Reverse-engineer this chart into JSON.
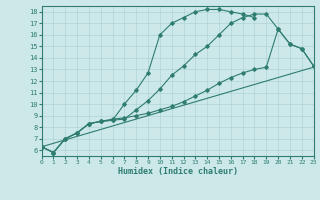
{
  "xlabel": "Humidex (Indice chaleur)",
  "xlim": [
    0,
    23
  ],
  "ylim": [
    5.5,
    18.5
  ],
  "xticks": [
    0,
    1,
    2,
    3,
    4,
    5,
    6,
    7,
    8,
    9,
    10,
    11,
    12,
    13,
    14,
    15,
    16,
    17,
    18,
    19,
    20,
    21,
    22,
    23
  ],
  "yticks": [
    6,
    7,
    8,
    9,
    10,
    11,
    12,
    13,
    14,
    15,
    16,
    17,
    18
  ],
  "bg_color": "#cce8e8",
  "line_color": "#2e7d6e",
  "grid_color": "#aacfcf",
  "curve1_x": [
    0,
    1,
    2,
    3,
    4,
    5,
    6,
    7,
    8,
    9,
    10,
    11,
    12,
    13,
    14,
    15,
    16,
    17,
    18
  ],
  "curve1_y": [
    6.3,
    5.8,
    7.0,
    7.5,
    8.3,
    8.5,
    8.6,
    10.0,
    11.2,
    12.7,
    16.0,
    17.0,
    17.5,
    18.0,
    18.2,
    18.2,
    18.0,
    17.8,
    17.5
  ],
  "curve2_x": [
    0,
    1,
    2,
    3,
    4,
    5,
    6,
    7,
    8,
    9,
    10,
    11,
    12,
    13,
    14,
    15,
    16,
    17,
    18,
    19,
    20,
    21,
    22,
    23
  ],
  "curve2_y": [
    6.3,
    5.8,
    7.0,
    7.5,
    8.3,
    8.5,
    8.6,
    8.7,
    9.5,
    10.3,
    11.3,
    12.5,
    13.3,
    14.3,
    15.0,
    16.0,
    17.0,
    17.5,
    17.8,
    17.8,
    16.5,
    15.2,
    14.8,
    13.3
  ],
  "curve3_x": [
    0,
    23
  ],
  "curve3_y": [
    6.3,
    13.2
  ],
  "curve4_x": [
    0,
    1,
    2,
    3,
    4,
    5,
    6,
    7,
    8,
    9,
    10,
    11,
    12,
    13,
    14,
    15,
    16,
    17,
    18,
    19,
    20,
    21,
    22,
    23
  ],
  "curve4_y": [
    6.3,
    5.8,
    7.0,
    7.5,
    8.3,
    8.5,
    8.7,
    8.8,
    9.0,
    9.2,
    9.5,
    9.8,
    10.2,
    10.7,
    11.2,
    11.8,
    12.3,
    12.7,
    13.0,
    13.2,
    16.5,
    15.2,
    14.8,
    13.3
  ]
}
